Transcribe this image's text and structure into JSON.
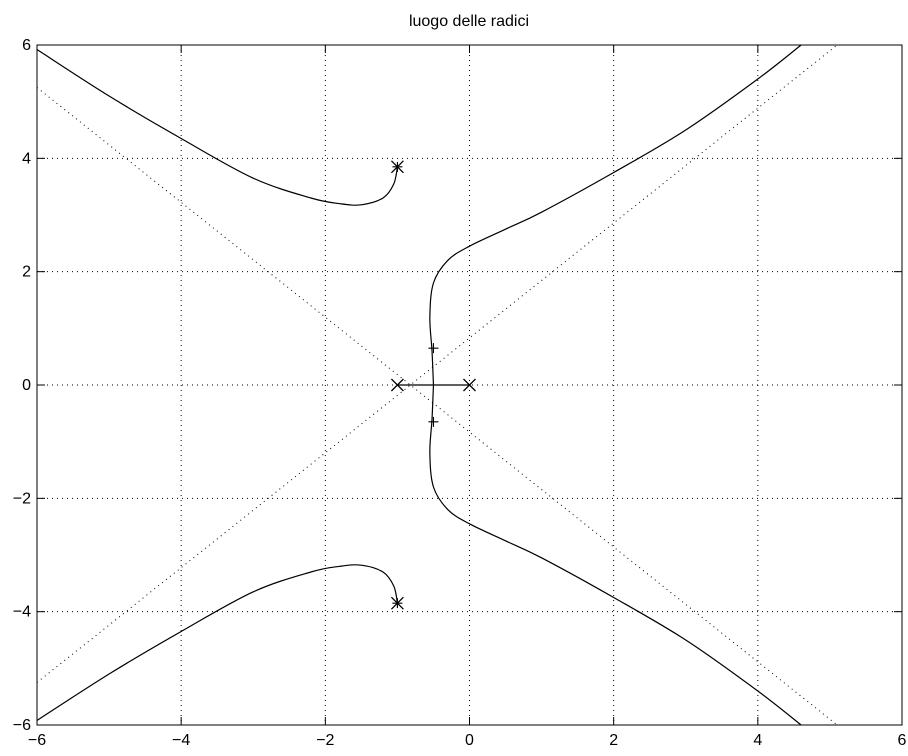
{
  "chart_data": {
    "type": "line",
    "title": "luogo delle radici",
    "xlabel": "",
    "ylabel": "",
    "xlim": [
      -6,
      6
    ],
    "ylim": [
      -6,
      6
    ],
    "xticks": [
      -6,
      -4,
      -2,
      0,
      2,
      4,
      6
    ],
    "yticks": [
      -6,
      -4,
      -2,
      0,
      2,
      4,
      6
    ],
    "xtick_labels": [
      "−6",
      "−4",
      "−2",
      "0",
      "2",
      "4",
      "6"
    ],
    "ytick_labels": [
      "−6",
      "−4",
      "−2",
      "0",
      "2",
      "4",
      "6"
    ],
    "grid": true,
    "series": [
      {
        "values": [
          [
            0,
            0
          ],
          [
            -0.5,
            0
          ]
        ]
      },
      {
        "values": [
          [
            -1,
            0
          ],
          [
            -0.5,
            0
          ]
        ]
      },
      {
        "values": [
          [
            -0.5,
            0
          ],
          [
            -0.52,
            0.6
          ],
          [
            -0.55,
            1.2
          ],
          [
            -0.5,
            1.8
          ],
          [
            -0.3,
            2.2
          ],
          [
            0,
            2.45
          ],
          [
            0.5,
            2.75
          ],
          [
            1,
            3.05
          ],
          [
            2,
            3.75
          ],
          [
            3,
            4.5
          ],
          [
            4,
            5.4
          ],
          [
            4.6,
            6
          ]
        ]
      },
      {
        "values": [
          [
            -0.5,
            0
          ],
          [
            -0.52,
            -0.6
          ],
          [
            -0.55,
            -1.2
          ],
          [
            -0.5,
            -1.8
          ],
          [
            -0.3,
            -2.2
          ],
          [
            0,
            -2.45
          ],
          [
            0.5,
            -2.75
          ],
          [
            1,
            -3.05
          ],
          [
            2,
            -3.75
          ],
          [
            3,
            -4.5
          ],
          [
            4,
            -5.4
          ],
          [
            4.6,
            -6
          ]
        ]
      },
      {
        "values": [
          [
            -1,
            3.85
          ],
          [
            -1.05,
            3.55
          ],
          [
            -1.2,
            3.3
          ],
          [
            -1.5,
            3.18
          ],
          [
            -1.8,
            3.2
          ],
          [
            -2.2,
            3.3
          ],
          [
            -3,
            3.65
          ],
          [
            -4,
            4.35
          ],
          [
            -5,
            5.1
          ],
          [
            -6,
            5.92
          ]
        ]
      },
      {
        "values": [
          [
            -1,
            -3.85
          ],
          [
            -1.05,
            -3.55
          ],
          [
            -1.2,
            -3.3
          ],
          [
            -1.5,
            -3.18
          ],
          [
            -1.8,
            -3.2
          ],
          [
            -2.2,
            -3.3
          ],
          [
            -3,
            -3.65
          ],
          [
            -4,
            -4.35
          ],
          [
            -5,
            -5.1
          ],
          [
            -6,
            -5.92
          ]
        ]
      }
    ],
    "asymptotes": [
      {
        "values": [
          [
            -6,
            5.25
          ],
          [
            5.1,
            -6
          ]
        ]
      },
      {
        "values": [
          [
            -6,
            -5.25
          ],
          [
            5.1,
            6
          ]
        ]
      }
    ],
    "poles": [
      [
        0,
        0
      ],
      [
        -1,
        0
      ],
      [
        -1,
        3.85
      ],
      [
        -1,
        -3.85
      ]
    ],
    "gain_markers": [
      [
        -0.5,
        0.65
      ],
      [
        -0.5,
        -0.65
      ],
      [
        -1,
        3.85
      ],
      [
        -1,
        -3.85
      ]
    ],
    "colors": {
      "line": "#000000",
      "grid": "#000000",
      "background": "#ffffff"
    }
  }
}
